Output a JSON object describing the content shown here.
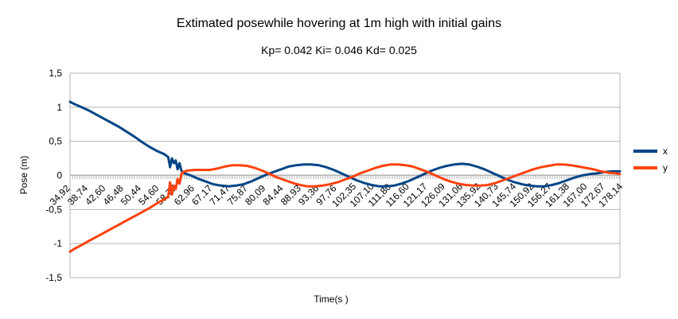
{
  "chart_data": {
    "type": "line",
    "title": "Extimated posewhile hovering at 1m high with initial gains",
    "subtitle": "Kp= 0.042  Ki= 0.046  Kd= 0.025",
    "xlabel": "Time(s )",
    "ylabel": "Pose (m)",
    "ylim": [
      -1.5,
      1.5
    ],
    "yticks": [
      "1,5",
      "1",
      "0,5",
      "0",
      "-0,5",
      "-1",
      "-1,5"
    ],
    "xlim": [
      34.92,
      181.0
    ],
    "xtick_labels": [
      "34,92",
      "38,74",
      "42,60",
      "46,48",
      "50,44",
      "54,60",
      "58,77",
      "62,96",
      "67,17",
      "71,47",
      "75,87",
      "80,09",
      "84,44",
      "88,93",
      "93,36",
      "97,76",
      "102,35",
      "107,10",
      "111,80",
      "116,60",
      "121,17",
      "126,09",
      "131,06",
      "135,92",
      "140,73",
      "145,74",
      "150,92",
      "156,27",
      "161,38",
      "167,00",
      "172,67",
      "178,14"
    ],
    "grid": "horizontal",
    "legend_position": "right",
    "series": [
      {
        "name": "x",
        "color": "#004586",
        "points": [
          [
            34.92,
            1.08
          ],
          [
            36,
            1.05
          ],
          [
            38,
            1.0
          ],
          [
            40,
            0.95
          ],
          [
            42,
            0.89
          ],
          [
            44,
            0.83
          ],
          [
            46,
            0.77
          ],
          [
            48,
            0.71
          ],
          [
            50,
            0.64
          ],
          [
            52,
            0.57
          ],
          [
            54,
            0.49
          ],
          [
            56,
            0.42
          ],
          [
            58,
            0.36
          ],
          [
            60,
            0.31
          ],
          [
            61,
            0.27
          ],
          [
            61.5,
            0.12
          ],
          [
            62,
            0.25
          ],
          [
            62.5,
            0.18
          ],
          [
            63,
            0.22
          ],
          [
            63.5,
            0.09
          ],
          [
            64,
            0.18
          ],
          [
            64.5,
            0.07
          ],
          [
            65,
            0.04
          ],
          [
            67,
            0.0
          ],
          [
            69,
            -0.05
          ],
          [
            71,
            -0.09
          ],
          [
            73,
            -0.13
          ],
          [
            75,
            -0.15
          ],
          [
            77,
            -0.16
          ],
          [
            79,
            -0.15
          ],
          [
            81,
            -0.13
          ],
          [
            83,
            -0.09
          ],
          [
            85,
            -0.04
          ],
          [
            87,
            0.01
          ],
          [
            89,
            0.05
          ],
          [
            91,
            0.09
          ],
          [
            93,
            0.13
          ],
          [
            95,
            0.15
          ],
          [
            97,
            0.16
          ],
          [
            99,
            0.16
          ],
          [
            101,
            0.15
          ],
          [
            103,
            0.12
          ],
          [
            105,
            0.08
          ],
          [
            107,
            0.03
          ],
          [
            109,
            -0.02
          ],
          [
            111,
            -0.07
          ],
          [
            113,
            -0.11
          ],
          [
            115,
            -0.14
          ],
          [
            117,
            -0.16
          ],
          [
            119,
            -0.16
          ],
          [
            121,
            -0.15
          ],
          [
            123,
            -0.12
          ],
          [
            125,
            -0.08
          ],
          [
            127,
            -0.03
          ],
          [
            129,
            0.02
          ],
          [
            131,
            0.07
          ],
          [
            133,
            0.11
          ],
          [
            135,
            0.14
          ],
          [
            137,
            0.16
          ],
          [
            139,
            0.17
          ],
          [
            141,
            0.16
          ],
          [
            143,
            0.13
          ],
          [
            145,
            0.09
          ],
          [
            147,
            0.04
          ],
          [
            149,
            -0.01
          ],
          [
            151,
            -0.06
          ],
          [
            153,
            -0.1
          ],
          [
            155,
            -0.13
          ],
          [
            157,
            -0.15
          ],
          [
            159,
            -0.16
          ],
          [
            161,
            -0.16
          ],
          [
            163,
            -0.14
          ],
          [
            165,
            -0.11
          ],
          [
            167,
            -0.07
          ],
          [
            169,
            -0.03
          ],
          [
            171,
            0.0
          ],
          [
            173,
            0.02
          ],
          [
            175,
            0.03
          ],
          [
            177,
            0.05
          ],
          [
            179,
            0.06
          ],
          [
            181,
            0.06
          ]
        ]
      },
      {
        "name": "y",
        "color": "#ff420e",
        "points": [
          [
            34.92,
            -1.12
          ],
          [
            36,
            -1.08
          ],
          [
            38,
            -1.02
          ],
          [
            40,
            -0.96
          ],
          [
            42,
            -0.9
          ],
          [
            44,
            -0.84
          ],
          [
            46,
            -0.78
          ],
          [
            48,
            -0.72
          ],
          [
            50,
            -0.66
          ],
          [
            52,
            -0.6
          ],
          [
            54,
            -0.54
          ],
          [
            56,
            -0.48
          ],
          [
            58,
            -0.41
          ],
          [
            60,
            -0.35
          ],
          [
            61,
            -0.31
          ],
          [
            61.5,
            -0.1
          ],
          [
            62,
            -0.28
          ],
          [
            62.5,
            -0.15
          ],
          [
            63,
            -0.2
          ],
          [
            63.5,
            -0.05
          ],
          [
            64,
            -0.12
          ],
          [
            64.5,
            0.02
          ],
          [
            65,
            0.05
          ],
          [
            66,
            0.07
          ],
          [
            68,
            0.08
          ],
          [
            70,
            0.08
          ],
          [
            72,
            0.08
          ],
          [
            74,
            0.1
          ],
          [
            76,
            0.13
          ],
          [
            78,
            0.15
          ],
          [
            80,
            0.15
          ],
          [
            82,
            0.14
          ],
          [
            84,
            0.11
          ],
          [
            86,
            0.07
          ],
          [
            88,
            0.02
          ],
          [
            90,
            -0.03
          ],
          [
            92,
            -0.07
          ],
          [
            94,
            -0.11
          ],
          [
            96,
            -0.14
          ],
          [
            98,
            -0.16
          ],
          [
            100,
            -0.16
          ],
          [
            102,
            -0.15
          ],
          [
            104,
            -0.13
          ],
          [
            106,
            -0.1
          ],
          [
            108,
            -0.06
          ],
          [
            110,
            -0.02
          ],
          [
            112,
            0.03
          ],
          [
            114,
            0.07
          ],
          [
            116,
            0.11
          ],
          [
            118,
            0.14
          ],
          [
            120,
            0.16
          ],
          [
            122,
            0.16
          ],
          [
            124,
            0.15
          ],
          [
            126,
            0.13
          ],
          [
            128,
            0.09
          ],
          [
            130,
            0.05
          ],
          [
            132,
            0.0
          ],
          [
            134,
            -0.05
          ],
          [
            136,
            -0.09
          ],
          [
            138,
            -0.12
          ],
          [
            140,
            -0.14
          ],
          [
            142,
            -0.15
          ],
          [
            144,
            -0.15
          ],
          [
            146,
            -0.14
          ],
          [
            148,
            -0.11
          ],
          [
            150,
            -0.07
          ],
          [
            152,
            -0.03
          ],
          [
            154,
            0.01
          ],
          [
            156,
            0.05
          ],
          [
            158,
            0.09
          ],
          [
            160,
            0.12
          ],
          [
            162,
            0.14
          ],
          [
            164,
            0.16
          ],
          [
            166,
            0.16
          ],
          [
            168,
            0.15
          ],
          [
            170,
            0.13
          ],
          [
            172,
            0.11
          ],
          [
            174,
            0.09
          ],
          [
            176,
            0.06
          ],
          [
            178,
            0.04
          ],
          [
            180,
            0.03
          ],
          [
            181,
            0.02
          ]
        ]
      }
    ]
  }
}
